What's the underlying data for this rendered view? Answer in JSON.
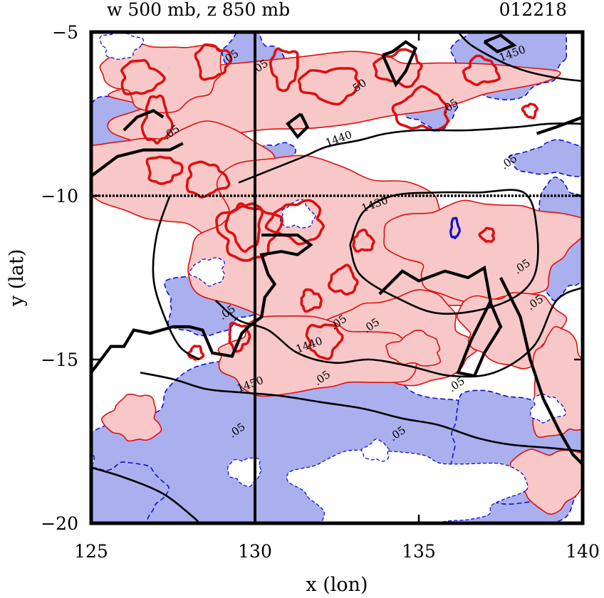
{
  "chart_data": {
    "type": "contour",
    "title_left": "w 500 mb, z 850 mb",
    "title_right": "012218",
    "xlabel": "x (lon)",
    "ylabel": "y (lat)",
    "xlim": [
      125,
      140
    ],
    "ylim": [
      -20,
      -5
    ],
    "xticks": [
      125,
      130,
      135,
      140
    ],
    "yticks": [
      -5,
      -10,
      -15,
      -20
    ],
    "xtick_labels": [
      "125",
      "130",
      "135",
      "140"
    ],
    "ytick_labels": [
      "−5",
      "−10",
      "−15",
      "−20"
    ],
    "reference_lines": {
      "vertical_x": 130,
      "horizontal_y": -10
    },
    "fill_colors": {
      "positive": "#f8c8c8",
      "negative": "#aab0ee",
      "background": "#ffffff"
    },
    "line_colors": {
      "positive_w": "#dd1010",
      "negative_w": "#1010cc",
      "height_z": "#000000"
    },
    "z_contours": [
      {
        "value": "1450",
        "label_at": [
          137.5,
          -5.9
        ],
        "points": [
          [
            136.2,
            -5
          ],
          [
            136.6,
            -5.4
          ],
          [
            137.5,
            -5.9
          ],
          [
            138.3,
            -6.2
          ],
          [
            139.2,
            -6.4
          ],
          [
            140,
            -6.5
          ]
        ]
      },
      {
        "value": "1440",
        "label_at": [
          132.2,
          -8.5
        ],
        "points": [
          [
            129.5,
            -9.6
          ],
          [
            130.5,
            -9.2
          ],
          [
            131.5,
            -8.8
          ],
          [
            132.2,
            -8.5
          ],
          [
            133.2,
            -8.3
          ],
          [
            134,
            -8.1
          ],
          [
            135,
            -8.0
          ],
          [
            136.5,
            -8.0
          ],
          [
            138,
            -7.9
          ],
          [
            139,
            -7.8
          ],
          [
            140,
            -7.8
          ]
        ]
      },
      {
        "value": "1430",
        "label_at": [
          133.3,
          -10.5
        ],
        "points": [
          [
            132.9,
            -11.5
          ],
          [
            133.3,
            -10.5
          ],
          [
            134.2,
            -10
          ],
          [
            135.5,
            -9.9
          ],
          [
            136.8,
            -9.9
          ],
          [
            138.2,
            -9.9
          ],
          [
            138.6,
            -11
          ],
          [
            138.5,
            -12.5
          ],
          [
            137.5,
            -13.3
          ],
          [
            135.7,
            -13.6
          ],
          [
            134.3,
            -13.1
          ],
          [
            133.2,
            -12.4
          ],
          [
            132.9,
            -11.5
          ]
        ]
      },
      {
        "value": "1440",
        "label_at": [
          131.3,
          -14.8
        ],
        "points": [
          [
            128.8,
            -13.2
          ],
          [
            129.5,
            -13.8
          ],
          [
            130.4,
            -14.1
          ],
          [
            131.3,
            -14.8
          ],
          [
            132.4,
            -15.1
          ],
          [
            133.5,
            -15.0
          ],
          [
            134.7,
            -15.2
          ],
          [
            136.0,
            -15.5
          ],
          [
            137.3,
            -15.4
          ],
          [
            138.5,
            -14.6
          ],
          [
            139.2,
            -13.2
          ],
          [
            140,
            -12.8
          ]
        ]
      },
      {
        "value": "1450",
        "label_at": [
          129.5,
          -16.0
        ],
        "points": [
          [
            126.5,
            -15.4
          ],
          [
            127.5,
            -15.6
          ],
          [
            128.5,
            -15.9
          ],
          [
            129.5,
            -16.0
          ],
          [
            130.7,
            -16.1
          ],
          [
            132,
            -16.3
          ],
          [
            133.3,
            -16.5
          ],
          [
            134.5,
            -16.8
          ],
          [
            135.6,
            -17.0
          ],
          [
            136.8,
            -17.4
          ],
          [
            137.8,
            -17.6
          ],
          [
            139.0,
            -17.7
          ],
          [
            140,
            -17.8
          ]
        ]
      },
      {
        "value": "",
        "label_at": null,
        "points": [
          [
            127.4,
            -10
          ],
          [
            127.0,
            -11.2
          ],
          [
            126.9,
            -12.5
          ],
          [
            127.2,
            -13.6
          ],
          [
            127.7,
            -14.6
          ],
          [
            128.3,
            -15.0
          ]
        ]
      },
      {
        "value": "",
        "label_at": null,
        "points": [
          [
            125,
            -18.3
          ],
          [
            126,
            -18.6
          ],
          [
            127.2,
            -19.1
          ],
          [
            128.1,
            -19.8
          ],
          [
            128.3,
            -20
          ]
        ]
      }
    ],
    "contour_labels": [
      {
        "text": ".05",
        "at": [
          129.1,
          -6.0
        ]
      },
      {
        "text": ".05",
        "at": [
          130.0,
          -6.3
        ]
      },
      {
        "text": ".05",
        "at": [
          127.3,
          -8.3
        ]
      },
      {
        "text": ".50",
        "at": [
          133.0,
          -6.9
        ]
      },
      {
        "text": ".05",
        "at": [
          135.8,
          -7.5
        ]
      },
      {
        "text": ".05",
        "at": [
          137.6,
          -9.2
        ]
      },
      {
        "text": ".05",
        "at": [
          138.0,
          -12.4
        ]
      },
      {
        "text": ".05",
        "at": [
          138.4,
          -13.5
        ]
      },
      {
        "text": ".05",
        "at": [
          129.0,
          -13.8
        ]
      },
      {
        "text": ".05",
        "at": [
          132.4,
          -14.1
        ]
      },
      {
        "text": ".05",
        "at": [
          133.4,
          -14.2
        ]
      },
      {
        "text": ".05",
        "at": [
          131.9,
          -15.8
        ]
      },
      {
        "text": ".05",
        "at": [
          136.0,
          -16.0
        ]
      },
      {
        "text": ".05",
        "at": [
          134.2,
          -17.5
        ]
      },
      {
        "text": ".05",
        "at": [
          129.3,
          -17.4
        ]
      }
    ],
    "w_positive_regions": [
      {
        "rx": 6.4,
        "ry": 1.1,
        "cx": 131.5,
        "cy": -6.9,
        "rot": -5
      },
      {
        "rx": 1.8,
        "ry": 1.0,
        "cx": 127.2,
        "cy": -6.3,
        "rot": 0
      },
      {
        "rx": 3.3,
        "ry": 1.6,
        "cx": 128.2,
        "cy": -9.6,
        "rot": 10
      },
      {
        "rx": 4.6,
        "ry": 2.5,
        "cx": 132.5,
        "cy": -11.6,
        "rot": 5
      },
      {
        "rx": 2.8,
        "ry": 1.5,
        "cx": 137.0,
        "cy": -11.6,
        "rot": 0
      },
      {
        "rx": 2.4,
        "ry": 1.3,
        "cx": 134.3,
        "cy": -14.4,
        "rot": 0
      },
      {
        "rx": 3.1,
        "ry": 1.1,
        "cx": 131.8,
        "cy": -14.9,
        "rot": 0
      },
      {
        "rx": 1.5,
        "ry": 1.1,
        "cx": 137.8,
        "cy": -14.0,
        "rot": 0
      },
      {
        "rx": 0.8,
        "ry": 0.7,
        "cx": 126.3,
        "cy": -16.8,
        "rot": 0
      },
      {
        "rx": 1.0,
        "ry": 1.6,
        "cx": 139.4,
        "cy": -15.8,
        "rot": 0
      },
      {
        "rx": 1.2,
        "ry": 0.9,
        "cx": 139.0,
        "cy": -18.6,
        "rot": 0
      },
      {
        "rx": 0.8,
        "ry": 0.5,
        "cx": 134.9,
        "cy": -14.7,
        "rot": 0
      }
    ],
    "w_negative_regions": [
      {
        "rx": 1.6,
        "ry": 1.0,
        "cx": 126.0,
        "cy": -8.0,
        "rot": 0
      },
      {
        "rx": 0.9,
        "ry": 1.1,
        "cx": 129.9,
        "cy": -6.1,
        "rot": 0
      },
      {
        "rx": 1.7,
        "ry": 1.1,
        "cx": 137.8,
        "cy": -5.8,
        "rot": 0
      },
      {
        "rx": 0.8,
        "ry": 0.6,
        "cx": 135.4,
        "cy": -7.3,
        "rot": 0
      },
      {
        "rx": 1.3,
        "ry": 0.5,
        "cx": 139.2,
        "cy": -8.9,
        "rot": 0
      },
      {
        "rx": 1.0,
        "ry": 1.7,
        "cx": 139.4,
        "cy": -11.4,
        "rot": 0
      },
      {
        "rx": 1.4,
        "ry": 0.9,
        "cx": 128.6,
        "cy": -13.3,
        "rot": 0
      },
      {
        "rx": 1.3,
        "ry": 1.6,
        "cx": 133.6,
        "cy": -13.2,
        "rot": 0
      },
      {
        "rx": 0.7,
        "ry": 0.5,
        "cx": 130.6,
        "cy": -8.9,
        "rot": 0
      },
      {
        "rx": 0.5,
        "ry": 0.4,
        "cx": 136.3,
        "cy": -10.9,
        "rot": 0
      },
      {
        "rx": 7.8,
        "ry": 2.7,
        "cx": 132.2,
        "cy": -18.0,
        "rot": 0
      },
      {
        "rx": 2.4,
        "ry": 1.6,
        "cx": 138.2,
        "cy": -17.6,
        "rot": 0
      },
      {
        "rx": 1.3,
        "ry": 1.1,
        "cx": 125.9,
        "cy": -19.2,
        "rot": 0
      }
    ],
    "w_white_holes": [
      {
        "rx": 3.4,
        "ry": 1.2,
        "cx": 134.5,
        "cy": -19.0,
        "rot": 0
      },
      {
        "rx": 0.5,
        "ry": 0.4,
        "cx": 129.7,
        "cy": -18.4,
        "rot": 0
      },
      {
        "rx": 0.4,
        "ry": 0.3,
        "cx": 133.7,
        "cy": -17.8,
        "rot": 0
      },
      {
        "rx": 0.5,
        "ry": 0.4,
        "cx": 138.9,
        "cy": -16.5,
        "rot": 0
      },
      {
        "rx": 0.6,
        "ry": 0.4,
        "cx": 125.9,
        "cy": -5.4,
        "rot": 0
      },
      {
        "rx": 0.5,
        "ry": 0.4,
        "cx": 128.6,
        "cy": -12.3,
        "rot": 0
      },
      {
        "rx": 0.5,
        "ry": 0.4,
        "cx": 131.3,
        "cy": -10.6,
        "rot": 0
      }
    ],
    "w_strong_positive_contours": [
      {
        "rx": 0.4,
        "ry": 0.7,
        "cx": 127.0,
        "cy": -7.7
      },
      {
        "rx": 0.6,
        "ry": 0.5,
        "cx": 126.5,
        "cy": -6.4
      },
      {
        "rx": 0.5,
        "ry": 0.5,
        "cx": 128.7,
        "cy": -5.9
      },
      {
        "rx": 0.4,
        "ry": 0.6,
        "cx": 130.9,
        "cy": -6.1
      },
      {
        "rx": 0.9,
        "ry": 0.5,
        "cx": 132.3,
        "cy": -6.6
      },
      {
        "rx": 0.7,
        "ry": 0.5,
        "cx": 134.4,
        "cy": -6.1
      },
      {
        "rx": 0.8,
        "ry": 0.6,
        "cx": 135.1,
        "cy": -7.4
      },
      {
        "rx": 0.5,
        "ry": 0.4,
        "cx": 136.9,
        "cy": -6.2
      },
      {
        "rx": 0.6,
        "ry": 0.5,
        "cx": 128.5,
        "cy": -9.5
      },
      {
        "rx": 0.5,
        "ry": 0.4,
        "cx": 127.2,
        "cy": -9.2
      },
      {
        "rx": 0.9,
        "ry": 0.8,
        "cx": 129.8,
        "cy": -11.1
      },
      {
        "rx": 0.5,
        "ry": 0.7,
        "cx": 129.7,
        "cy": -10.9
      },
      {
        "rx": 0.8,
        "ry": 0.6,
        "cx": 131.3,
        "cy": -10.8
      },
      {
        "rx": 0.4,
        "ry": 0.4,
        "cx": 132.7,
        "cy": -12.6
      },
      {
        "rx": 0.3,
        "ry": 0.3,
        "cx": 133.3,
        "cy": -11.4
      },
      {
        "rx": 0.3,
        "ry": 0.3,
        "cx": 131.7,
        "cy": -13.2
      },
      {
        "rx": 0.3,
        "ry": 0.4,
        "cx": 129.5,
        "cy": -14.3
      },
      {
        "rx": 0.5,
        "ry": 0.5,
        "cx": 132.1,
        "cy": -14.4
      },
      {
        "rx": 0.2,
        "ry": 0.2,
        "cx": 138.4,
        "cy": -7.4
      },
      {
        "rx": 0.2,
        "ry": 0.2,
        "cx": 137.1,
        "cy": -11.2
      },
      {
        "rx": 0.2,
        "ry": 0.2,
        "cx": 128.2,
        "cy": -14.8
      }
    ],
    "w_strong_negative_contours": [
      {
        "rx": 0.12,
        "ry": 0.3,
        "cx": 136.1,
        "cy": -11.0
      }
    ],
    "rain_boundary_polylines": [
      [
        [
          125,
          -15.4
        ],
        [
          125.6,
          -14.6
        ],
        [
          126,
          -14.6
        ],
        [
          126.3,
          -14.1
        ],
        [
          126.8,
          -14.2
        ],
        [
          127.5,
          -14.0
        ],
        [
          128.0,
          -14.0
        ],
        [
          128.4,
          -14.1
        ],
        [
          128.7,
          -14.8
        ],
        [
          129.3,
          -14.9
        ],
        [
          129.6,
          -14.2
        ],
        [
          129.8,
          -14.0
        ],
        [
          130.2,
          -13.7
        ],
        [
          130.3,
          -13.1
        ],
        [
          130.6,
          -12.7
        ],
        [
          130.4,
          -12.4
        ],
        [
          130.2,
          -11.8
        ],
        [
          130.8,
          -11.7
        ],
        [
          131.3,
          -11.8
        ],
        [
          131.7,
          -11.5
        ],
        [
          131.3,
          -11.2
        ],
        [
          130.7,
          -11.2
        ],
        [
          130.2,
          -11.2
        ]
      ],
      [
        [
          133.8,
          -13.0
        ],
        [
          134.5,
          -12.3
        ],
        [
          135.0,
          -12.6
        ],
        [
          135.8,
          -12.3
        ],
        [
          136.5,
          -12.5
        ],
        [
          137.0,
          -12.2
        ],
        [
          137.2,
          -13.3
        ],
        [
          137.5,
          -14.0
        ],
        [
          137.0,
          -14.8
        ],
        [
          136.7,
          -15.5
        ],
        [
          136.2,
          -15.4
        ],
        [
          136.6,
          -14.4
        ],
        [
          136.9,
          -13.8
        ],
        [
          137.2,
          -13.2
        ]
      ],
      [
        [
          137.5,
          -12.5
        ],
        [
          138.1,
          -13.7
        ],
        [
          138.4,
          -15.0
        ],
        [
          138.8,
          -16.2
        ],
        [
          139.3,
          -17.2
        ],
        [
          139.7,
          -17.9
        ],
        [
          140,
          -18.2
        ]
      ],
      [
        [
          133.9,
          -5.7
        ],
        [
          134.3,
          -6.6
        ],
        [
          134.6,
          -6.2
        ],
        [
          134.9,
          -5.5
        ],
        [
          134.6,
          -5.3
        ],
        [
          134.2,
          -5.6
        ],
        [
          133.9,
          -5.7
        ]
      ],
      [
        [
          131.4,
          -7.5
        ],
        [
          131.6,
          -7.9
        ],
        [
          131.3,
          -8.2
        ],
        [
          131.0,
          -7.8
        ],
        [
          131.4,
          -7.5
        ]
      ],
      [
        [
          137.0,
          -5.3
        ],
        [
          137.5,
          -5.1
        ],
        [
          137.9,
          -5.4
        ],
        [
          137.4,
          -5.6
        ],
        [
          137.0,
          -5.3
        ]
      ],
      [
        [
          125,
          -9.4
        ],
        [
          125.8,
          -8.8
        ],
        [
          126.6,
          -8.6
        ],
        [
          127.4,
          -8.6
        ],
        [
          127.8,
          -8.4
        ]
      ],
      [
        [
          126.0,
          -8.0
        ],
        [
          126.4,
          -7.6
        ],
        [
          126.9,
          -7.4
        ],
        [
          127.2,
          -7.6
        ]
      ],
      [
        [
          138.6,
          -8.1
        ],
        [
          139.2,
          -7.9
        ],
        [
          140,
          -7.6
        ]
      ]
    ]
  }
}
